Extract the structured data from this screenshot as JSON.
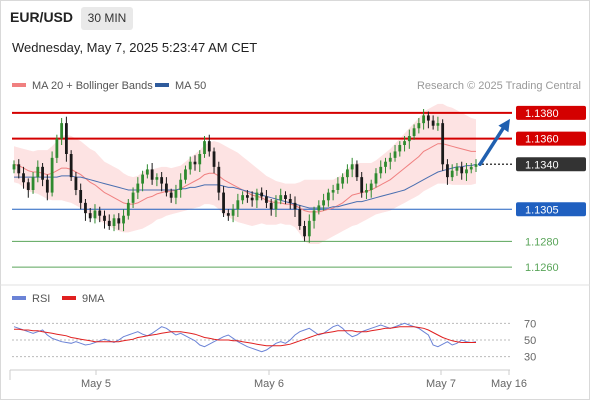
{
  "header": {
    "symbol": "EUR/USD",
    "timeframe": "30 MIN",
    "subtitle": "Wednesday, May 7, 2025 5:23:47 AM CET"
  },
  "legend": {
    "ma20": "MA 20 + Bollinger Bands",
    "ma50": "MA 50",
    "credit": "Research © 2025 Trading Central"
  },
  "rsi_legend": {
    "rsi": "RSI",
    "ma9": "9MA"
  },
  "colors": {
    "resistance": "#d40000",
    "pivot": "#2060c0",
    "support": "#5aa55a",
    "candle_up": "#2f8a2f",
    "candle_down": "#1a1a1a",
    "bollinger_fill": "#fde3e3",
    "ma20": "#f08080",
    "ma50": "#4a6fb0",
    "rsi": "#6b83d6",
    "rsi_ma": "#e02020",
    "arrow": "#2060b0",
    "current_price_bg": "#333333"
  },
  "chart_data": [
    {
      "type": "candlestick",
      "title": "EUR/USD",
      "ylim": [
        1.125,
        1.139
      ],
      "x_ticks": [
        "May 5",
        "May 6",
        "May 7",
        "May 16"
      ],
      "levels": [
        {
          "value": 1.138,
          "label": "1.1380",
          "kind": "resistance"
        },
        {
          "value": 1.136,
          "label": "1.1360",
          "kind": "resistance"
        },
        {
          "value": 1.134,
          "label": "1.1340",
          "kind": "current"
        },
        {
          "value": 1.1305,
          "label": "1.1305",
          "kind": "pivot"
        },
        {
          "value": 1.128,
          "label": "1.1280",
          "kind": "support"
        },
        {
          "value": 1.126,
          "label": "1.1260",
          "kind": "support"
        }
      ],
      "close": [
        1.134,
        1.1333,
        1.1326,
        1.132,
        1.133,
        1.1338,
        1.1328,
        1.1318,
        1.1345,
        1.136,
        1.1372,
        1.1348,
        1.133,
        1.132,
        1.131,
        1.1302,
        1.1298,
        1.1304,
        1.13,
        1.1296,
        1.1292,
        1.1298,
        1.1294,
        1.13,
        1.131,
        1.1318,
        1.1325,
        1.1332,
        1.1336,
        1.1328,
        1.133,
        1.1325,
        1.1318,
        1.1314,
        1.132,
        1.1328,
        1.1336,
        1.1342,
        1.134,
        1.1348,
        1.1358,
        1.135,
        1.1338,
        1.1318,
        1.1302,
        1.13,
        1.1305,
        1.1312,
        1.1316,
        1.1314,
        1.1312,
        1.1318,
        1.1315,
        1.131,
        1.1305,
        1.1312,
        1.1316,
        1.1313,
        1.131,
        1.1305,
        1.1292,
        1.1284,
        1.1296,
        1.1304,
        1.1308,
        1.1312,
        1.1318,
        1.132,
        1.1325,
        1.133,
        1.1336,
        1.134,
        1.133,
        1.1318,
        1.132,
        1.1325,
        1.1333,
        1.1338,
        1.1342,
        1.1345,
        1.135,
        1.1355,
        1.1358,
        1.1362,
        1.1368,
        1.1372,
        1.1378,
        1.1374,
        1.137,
        1.1372,
        1.134,
        1.133,
        1.1335,
        1.1338,
        1.1333,
        1.1336,
        1.1338,
        1.134
      ],
      "ma20": [
        1.134,
        1.1339,
        1.1337,
        1.1335,
        1.1334,
        1.1334,
        1.1333,
        1.1332,
        1.1333,
        1.1335,
        1.1337,
        1.1337,
        1.1336,
        1.1334,
        1.1332,
        1.1329,
        1.1326,
        1.1324,
        1.1321,
        1.1318,
        1.1316,
        1.1314,
        1.1312,
        1.131,
        1.1309,
        1.1309,
        1.131,
        1.1312,
        1.1314,
        1.1315,
        1.1317,
        1.1318,
        1.1319,
        1.1319,
        1.132,
        1.1321,
        1.1323,
        1.1325,
        1.1327,
        1.1329,
        1.1332,
        1.1333,
        1.1333,
        1.1331,
        1.1328,
        1.1326,
        1.1324,
        1.1322,
        1.132,
        1.1318,
        1.1316,
        1.1315,
        1.1314,
        1.1312,
        1.1311,
        1.131,
        1.131,
        1.1309,
        1.1309,
        1.1308,
        1.1306,
        1.1304,
        1.1303,
        1.1303,
        1.1303,
        1.1304,
        1.1305,
        1.1306,
        1.1308,
        1.131,
        1.1313,
        1.1316,
        1.1317,
        1.1318,
        1.1319,
        1.132,
        1.1322,
        1.1324,
        1.1326,
        1.1328,
        1.1331,
        1.1334,
        1.1337,
        1.134,
        1.1343,
        1.1346,
        1.135,
        1.1352,
        1.1354,
        1.1356,
        1.1356,
        1.1355,
        1.1354,
        1.1353,
        1.1352,
        1.1351,
        1.135,
        1.135
      ],
      "ma50": [
        1.133,
        1.133,
        1.133,
        1.133,
        1.133,
        1.133,
        1.133,
        1.133,
        1.133,
        1.133,
        1.1331,
        1.1331,
        1.1331,
        1.133,
        1.133,
        1.1329,
        1.1328,
        1.1327,
        1.1326,
        1.1325,
        1.1324,
        1.1323,
        1.1322,
        1.1321,
        1.132,
        1.132,
        1.132,
        1.132,
        1.132,
        1.132,
        1.132,
        1.132,
        1.132,
        1.132,
        1.132,
        1.1321,
        1.1321,
        1.1322,
        1.1322,
        1.1323,
        1.1324,
        1.1324,
        1.1324,
        1.1324,
        1.1323,
        1.1322,
        1.1322,
        1.1321,
        1.132,
        1.1319,
        1.1318,
        1.1317,
        1.1316,
        1.1315,
        1.1314,
        1.1313,
        1.1312,
        1.1311,
        1.131,
        1.1309,
        1.1308,
        1.1307,
        1.1306,
        1.1306,
        1.1306,
        1.1306,
        1.1306,
        1.1307,
        1.1307,
        1.1308,
        1.1309,
        1.131,
        1.1311,
        1.1311,
        1.1312,
        1.1313,
        1.1314,
        1.1315,
        1.1316,
        1.1317,
        1.1318,
        1.1319,
        1.132,
        1.1322,
        1.1324,
        1.1326,
        1.1328,
        1.133,
        1.1332,
        1.1334,
        1.1335,
        1.1336,
        1.1337,
        1.1338,
        1.1338,
        1.1339,
        1.1339,
        1.134
      ],
      "bollinger_width": [
        0.0014,
        0.0014,
        0.0015,
        0.0016,
        0.0016,
        0.0017,
        0.0018,
        0.0019,
        0.0021,
        0.0023,
        0.0025,
        0.0026,
        0.0026,
        0.0026,
        0.0026,
        0.0026,
        0.0026,
        0.0026,
        0.0025,
        0.0024,
        0.0024,
        0.0024,
        0.0024,
        0.0023,
        0.0022,
        0.0021,
        0.0021,
        0.0022,
        0.0022,
        0.0021,
        0.002,
        0.002,
        0.0019,
        0.0018,
        0.0018,
        0.0018,
        0.0019,
        0.002,
        0.0021,
        0.0022,
        0.0023,
        0.0024,
        0.0025,
        0.0026,
        0.0027,
        0.0027,
        0.0027,
        0.0027,
        0.0026,
        0.0025,
        0.0024,
        0.0022,
        0.002,
        0.0019,
        0.0018,
        0.0017,
        0.0016,
        0.0016,
        0.0016,
        0.0017,
        0.002,
        0.0024,
        0.0025,
        0.0025,
        0.0025,
        0.0024,
        0.0023,
        0.0022,
        0.0022,
        0.0022,
        0.0023,
        0.0024,
        0.0024,
        0.0023,
        0.0022,
        0.0021,
        0.0021,
        0.0022,
        0.0023,
        0.0024,
        0.0025,
        0.0026,
        0.0027,
        0.0028,
        0.0029,
        0.003,
        0.0031,
        0.0031,
        0.0031,
        0.0031,
        0.0031,
        0.003,
        0.003,
        0.0029,
        0.0028,
        0.0027,
        0.0026,
        0.0025
      ]
    },
    {
      "type": "line",
      "title": "RSI",
      "ylim": [
        20,
        80
      ],
      "y_ticks": [
        70,
        50,
        30
      ],
      "series": [
        {
          "name": "RSI",
          "values": [
            66,
            64,
            62,
            60,
            58,
            60,
            62,
            56,
            52,
            50,
            48,
            47,
            46,
            48,
            46,
            44,
            45,
            47,
            49,
            51,
            49,
            47,
            50,
            54,
            56,
            58,
            60,
            57,
            55,
            58,
            62,
            66,
            64,
            60,
            56,
            58,
            55,
            52,
            49,
            44,
            42,
            45,
            48,
            51,
            54,
            56,
            52,
            48,
            45,
            42,
            40,
            38,
            36,
            38,
            42,
            46,
            48,
            46,
            50,
            56,
            60,
            62,
            64,
            60,
            56,
            58,
            62,
            66,
            68,
            64,
            58,
            54,
            56,
            60,
            62,
            64,
            66,
            68,
            66,
            64,
            66,
            68,
            70,
            68,
            66,
            64,
            60,
            56,
            44,
            42,
            45,
            48,
            44,
            46,
            50,
            48,
            47,
            48
          ]
        },
        {
          "name": "9MA",
          "values": [
            63,
            63,
            62,
            62,
            61,
            61,
            60,
            59,
            58,
            57,
            56,
            55,
            53,
            52,
            51,
            50,
            49,
            48,
            48,
            48,
            48,
            48,
            48,
            49,
            50,
            51,
            53,
            54,
            55,
            56,
            57,
            58,
            59,
            60,
            60,
            60,
            59,
            58,
            57,
            55,
            53,
            52,
            51,
            50,
            50,
            50,
            49,
            49,
            48,
            47,
            46,
            45,
            44,
            43,
            43,
            43,
            43,
            44,
            45,
            47,
            49,
            51,
            53,
            55,
            57,
            58,
            59,
            60,
            61,
            61,
            61,
            61,
            60,
            60,
            60,
            61,
            62,
            63,
            64,
            64,
            65,
            66,
            66,
            66,
            66,
            65,
            64,
            62,
            59,
            56,
            53,
            51,
            49,
            48,
            47,
            47,
            47,
            47
          ]
        }
      ]
    }
  ]
}
